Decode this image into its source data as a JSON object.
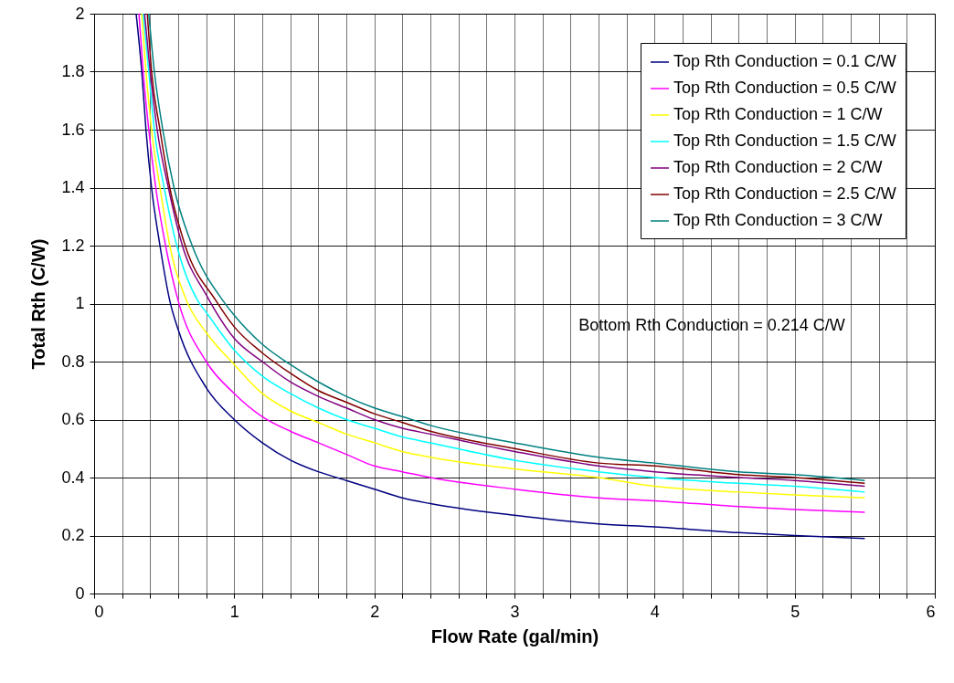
{
  "chart_data": {
    "type": "line",
    "xlabel": "Flow Rate (gal/min)",
    "ylabel": "Total Rth (C/W)",
    "xlim": [
      0,
      6
    ],
    "ylim": [
      0,
      2
    ],
    "xticks": [
      0,
      {
        "value": 0.2,
        "label": null
      },
      {
        "value": 0.4,
        "label": null
      },
      {
        "value": 0.6,
        "label": null
      },
      {
        "value": 0.8,
        "label": null
      },
      1,
      {
        "value": 1.2,
        "label": null
      },
      {
        "value": 1.4,
        "label": null
      },
      {
        "value": 1.6,
        "label": null
      },
      {
        "value": 1.8,
        "label": null
      },
      2,
      {
        "value": 2.2,
        "label": null
      },
      {
        "value": 2.4,
        "label": null
      },
      {
        "value": 2.6,
        "label": null
      },
      {
        "value": 2.8,
        "label": null
      },
      3,
      {
        "value": 3.2,
        "label": null
      },
      {
        "value": 3.4,
        "label": null
      },
      {
        "value": 3.6,
        "label": null
      },
      {
        "value": 3.8,
        "label": null
      },
      4,
      {
        "value": 4.2,
        "label": null
      },
      {
        "value": 4.4,
        "label": null
      },
      {
        "value": 4.6,
        "label": null
      },
      {
        "value": 4.8,
        "label": null
      },
      5,
      {
        "value": 5.2,
        "label": null
      },
      {
        "value": 5.4,
        "label": null
      },
      {
        "value": 5.6,
        "label": null
      },
      {
        "value": 5.8,
        "label": null
      },
      6
    ],
    "yticks": [
      0,
      0.2,
      0.4,
      0.6,
      0.8,
      1,
      1.2,
      1.4,
      1.6,
      1.8,
      2
    ],
    "grid": true,
    "legend": "top right",
    "marker": "none",
    "line_style": "solid",
    "annotations": [
      "Bottom Rth Conduction = 0.214 C/W"
    ],
    "series": [
      {
        "name": "Top Rth Conduction = 0.1 C/W",
        "color": "#000080",
        "x": [
          0.3,
          0.34,
          0.37,
          0.41,
          0.47,
          0.54,
          0.6,
          0.8,
          1,
          1.2,
          1.4,
          1.6,
          1.8,
          2,
          2.2,
          2.4,
          3,
          3.6,
          4,
          4.6,
          5,
          5.5
        ],
        "values": [
          2,
          1.8,
          1.6,
          1.4,
          1.2,
          1.01,
          0.91,
          0.71,
          0.6,
          0.52,
          0.46,
          0.42,
          0.39,
          0.36,
          0.33,
          0.31,
          0.27,
          0.24,
          0.23,
          0.21,
          0.2,
          0.19
        ]
      },
      {
        "name": "Top Rth Conduction = 0.5 C/W",
        "color": "#ff00ff",
        "x": [
          0.32,
          0.35,
          0.39,
          0.44,
          0.51,
          0.6,
          0.8,
          1,
          1.2,
          1.4,
          1.6,
          1.8,
          2,
          2.2,
          2.4,
          3,
          3.6,
          4,
          4.6,
          5,
          5.5
        ],
        "values": [
          2,
          1.8,
          1.6,
          1.4,
          1.2,
          1.01,
          0.8,
          0.69,
          0.61,
          0.56,
          0.52,
          0.48,
          0.44,
          0.42,
          0.4,
          0.36,
          0.33,
          0.32,
          0.3,
          0.29,
          0.28
        ]
      },
      {
        "name": "Top Rth Conduction = 1 C/W",
        "color": "#ffff00",
        "x": [
          0.34,
          0.37,
          0.41,
          0.47,
          0.54,
          0.66,
          0.8,
          1,
          1.2,
          1.4,
          1.6,
          1.8,
          2,
          2.2,
          2.4,
          3,
          3.6,
          4,
          4.6,
          5,
          5.5
        ],
        "values": [
          2,
          1.8,
          1.6,
          1.4,
          1.2,
          1.01,
          0.9,
          0.79,
          0.69,
          0.63,
          0.59,
          0.55,
          0.52,
          0.49,
          0.47,
          0.43,
          0.4,
          0.37,
          0.35,
          0.34,
          0.33
        ]
      },
      {
        "name": "Top Rth Conduction = 1.5 C/W",
        "color": "#00ffff",
        "x": [
          0.35,
          0.39,
          0.43,
          0.5,
          0.59,
          0.74,
          0.8,
          1,
          1.2,
          1.4,
          1.6,
          1.8,
          2,
          2.2,
          2.4,
          3,
          3.6,
          4,
          4.6,
          5,
          5.5
        ],
        "values": [
          2,
          1.8,
          1.6,
          1.4,
          1.2,
          1.01,
          0.97,
          0.84,
          0.75,
          0.69,
          0.64,
          0.6,
          0.57,
          0.54,
          0.52,
          0.46,
          0.42,
          0.4,
          0.38,
          0.37,
          0.35
        ]
      },
      {
        "name": "Top Rth Conduction = 2 C/W",
        "color": "#800080",
        "x": [
          0.36,
          0.4,
          0.45,
          0.53,
          0.63,
          0.8,
          1,
          1.2,
          1.4,
          1.6,
          1.8,
          2,
          2.2,
          2.4,
          3,
          3.6,
          4,
          4.6,
          5,
          5.5
        ],
        "values": [
          2,
          1.8,
          1.6,
          1.4,
          1.2,
          1.03,
          0.88,
          0.8,
          0.73,
          0.68,
          0.64,
          0.6,
          0.57,
          0.55,
          0.49,
          0.44,
          0.42,
          0.4,
          0.39,
          0.37
        ]
      },
      {
        "name": "Top Rth Conduction = 2.5 C/W",
        "color": "#800000",
        "x": [
          0.38,
          0.41,
          0.47,
          0.54,
          0.65,
          0.87,
          1,
          1.2,
          1.4,
          1.6,
          1.8,
          2,
          2.2,
          2.4,
          3,
          3.6,
          4,
          4.6,
          5,
          5.5
        ],
        "values": [
          2,
          1.8,
          1.6,
          1.4,
          1.2,
          1.01,
          0.92,
          0.83,
          0.76,
          0.7,
          0.66,
          0.62,
          0.59,
          0.56,
          0.5,
          0.45,
          0.44,
          0.41,
          0.4,
          0.38
        ]
      },
      {
        "name": "Top Rth Conduction = 3 C/W",
        "color": "#008080",
        "x": [
          0.39,
          0.43,
          0.49,
          0.57,
          0.7,
          0.92,
          1,
          1.2,
          1.4,
          1.6,
          1.8,
          2,
          2.2,
          2.4,
          3,
          3.6,
          4,
          4.6,
          5,
          5.5
        ],
        "values": [
          2,
          1.8,
          1.6,
          1.4,
          1.2,
          1.01,
          0.96,
          0.86,
          0.79,
          0.73,
          0.68,
          0.64,
          0.61,
          0.58,
          0.52,
          0.47,
          0.45,
          0.42,
          0.41,
          0.39
        ]
      }
    ]
  }
}
